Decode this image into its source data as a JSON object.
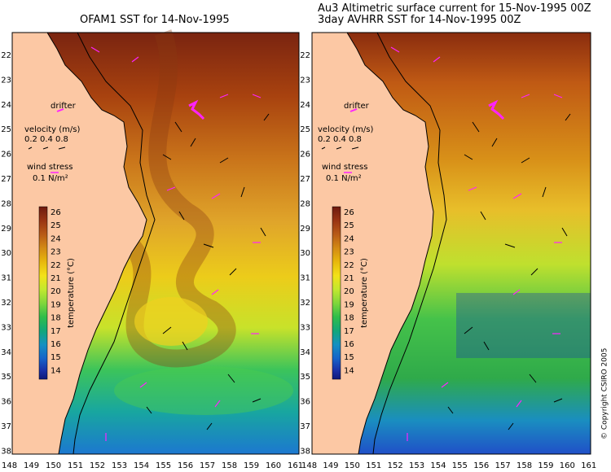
{
  "left_panel": {
    "title": "OFAM1 SST for 14-Nov-1995"
  },
  "right_panel": {
    "title_line1": "Au3 Altimetric surface current for 15-Nov-1995 00Z",
    "title_line2": "3day AVHRR SST for 14-Nov-1995 00Z"
  },
  "legend": {
    "drifter": "drifter",
    "velocity": "velocity (m/s)",
    "velocity_values": [
      "0.2",
      "0.4",
      "0.8"
    ],
    "wind_label": "wind stress",
    "wind_value": "0.1 N/m²"
  },
  "colorbar": {
    "label": "temperature (°C)",
    "ticks": [
      "26",
      "25",
      "24",
      "23",
      "22",
      "21",
      "20",
      "19",
      "18",
      "17",
      "16",
      "15",
      "14"
    ],
    "colors": [
      "#6e1a0f",
      "#9a3412",
      "#b85a16",
      "#d38a14",
      "#e8b80c",
      "#f3e218",
      "#c2e82e",
      "#7fd63b",
      "#2fbd4a",
      "#12a77a",
      "#1590c2",
      "#1763c9",
      "#1a2fa6",
      "#10187a"
    ]
  },
  "latitude_ticks": [
    "22",
    "23",
    "24",
    "25",
    "26",
    "27",
    "28",
    "29",
    "30",
    "31",
    "32",
    "33",
    "34",
    "35",
    "36",
    "37",
    "38"
  ],
  "longitude_ticks": [
    "148",
    "149",
    "150",
    "151",
    "152",
    "153",
    "154",
    "155",
    "156",
    "157",
    "158",
    "159",
    "160",
    "161"
  ],
  "copyright": "© Copyright CSIRO 2005",
  "colors": {
    "land": "#fcc8a4",
    "drifter": "#ff22ff",
    "coast": "#000000"
  }
}
